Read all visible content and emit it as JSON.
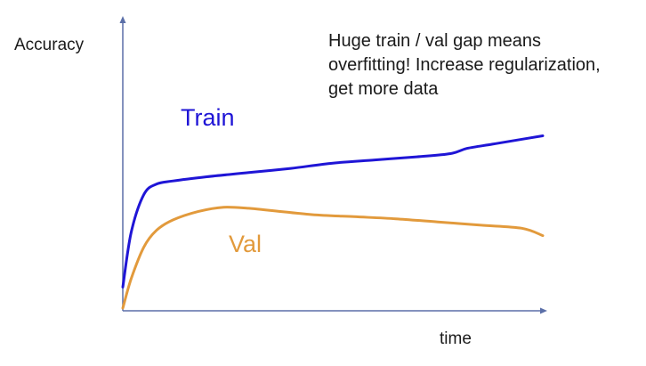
{
  "chart_data": {
    "type": "line",
    "ylabel": "Accuracy",
    "xlabel": "time",
    "annotation_lines": [
      "Huge train / val gap means",
      "overfitting! Increase regularization,",
      "get more data"
    ],
    "axis_color": "#5b6fa8",
    "grid": false,
    "legend": "inline labels",
    "series": [
      {
        "name": "Train",
        "color": "#1f15d6",
        "points": [
          [
            0.0,
            0.1
          ],
          [
            0.02,
            0.36
          ],
          [
            0.05,
            0.54
          ],
          [
            0.08,
            0.59
          ],
          [
            0.12,
            0.605
          ],
          [
            0.2,
            0.625
          ],
          [
            0.3,
            0.645
          ],
          [
            0.4,
            0.665
          ],
          [
            0.5,
            0.69
          ],
          [
            0.6,
            0.705
          ],
          [
            0.7,
            0.72
          ],
          [
            0.78,
            0.735
          ],
          [
            0.82,
            0.76
          ],
          [
            0.88,
            0.78
          ],
          [
            0.94,
            0.8
          ],
          [
            1.0,
            0.82
          ]
        ]
      },
      {
        "name": "Val",
        "color": "#e29a3c",
        "points": [
          [
            0.0,
            0.0
          ],
          [
            0.02,
            0.14
          ],
          [
            0.05,
            0.29
          ],
          [
            0.08,
            0.37
          ],
          [
            0.12,
            0.42
          ],
          [
            0.18,
            0.46
          ],
          [
            0.24,
            0.48
          ],
          [
            0.3,
            0.475
          ],
          [
            0.35,
            0.465
          ],
          [
            0.45,
            0.445
          ],
          [
            0.55,
            0.435
          ],
          [
            0.65,
            0.425
          ],
          [
            0.75,
            0.41
          ],
          [
            0.85,
            0.395
          ],
          [
            0.95,
            0.38
          ],
          [
            1.0,
            0.345
          ]
        ]
      }
    ]
  }
}
